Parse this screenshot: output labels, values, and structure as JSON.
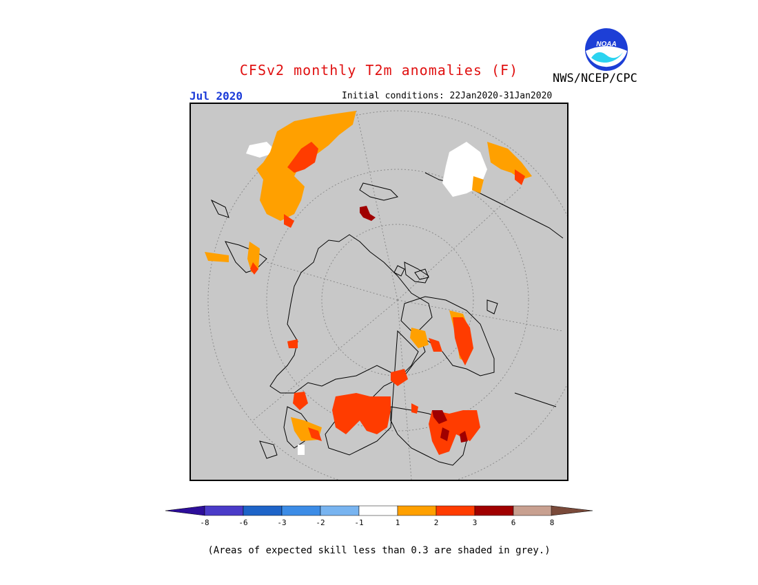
{
  "header": {
    "title": "CFSv2 monthly T2m anomalies (F)",
    "month": "Jul 2020",
    "initial_conditions": "Initial conditions: 22Jan2020-31Jan2020",
    "agency": "NWS/NCEP/CPC",
    "logo_text": "NOAA"
  },
  "colorbar": {
    "labels": [
      "-8",
      "-6",
      "-3",
      "-2",
      "-1",
      "1",
      "2",
      "3",
      "6",
      "8"
    ],
    "colors": [
      "#2d0e9a",
      "#4a3bc8",
      "#1e64c8",
      "#3c8ce6",
      "#78b4f0",
      "#ffffff",
      "#ffa000",
      "#ff3c00",
      "#a00000",
      "#c8a090",
      "#7a4a3a"
    ]
  },
  "footer": {
    "note": "(Areas of expected skill less than 0.3 are shaded in grey.)"
  }
}
